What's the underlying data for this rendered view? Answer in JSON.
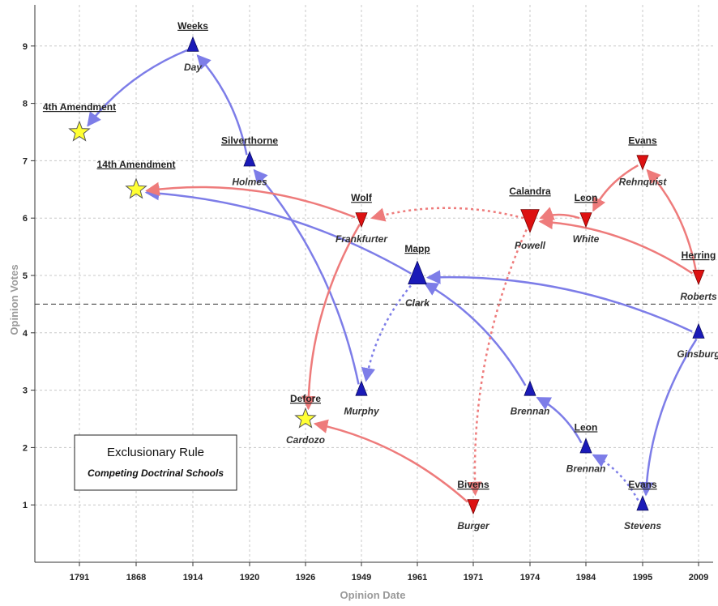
{
  "chart_data": {
    "type": "scatter",
    "xlabel": "Opinion Date",
    "ylabel": "Opinion Votes",
    "categories": [
      "1791",
      "1868",
      "1914",
      "1920",
      "1926",
      "1949",
      "1961",
      "1971",
      "1974",
      "1984",
      "1995",
      "2009"
    ],
    "ylim": [
      0,
      9.7
    ],
    "yticks": [
      1,
      2,
      3,
      4,
      5,
      6,
      7,
      8,
      9
    ],
    "threshold": 4.5,
    "grid": true,
    "box": {
      "title": "Exclusionary Rule",
      "subtitle": "Competing Doctrinal Schools"
    },
    "colors": {
      "blue": "#1a1ab8",
      "red": "#dd1111",
      "star": "#ffff33",
      "blue_link": "#7d7de8",
      "red_link": "#ee7b7b"
    },
    "nodes": [
      {
        "id": "amend4",
        "x": "1791",
        "y": 7.5,
        "shape": "star",
        "case": "4th Amendment",
        "justice": ""
      },
      {
        "id": "amend14",
        "x": "1868",
        "y": 6.5,
        "shape": "star",
        "case": "14th Amendment",
        "justice": ""
      },
      {
        "id": "weeks",
        "x": "1914",
        "y": 9,
        "shape": "triangle-up",
        "case": "Weeks",
        "justice": "Day"
      },
      {
        "id": "silverthorne",
        "x": "1920",
        "y": 7,
        "shape": "triangle-up",
        "case": "Silverthorne",
        "justice": "Holmes"
      },
      {
        "id": "defore",
        "x": "1926",
        "y": 2.5,
        "shape": "star",
        "case": "Defore",
        "justice": "Cardozo"
      },
      {
        "id": "wolf",
        "x": "1949",
        "y": 6,
        "shape": "triangle-down",
        "case": "Wolf",
        "justice": "Frankfurter"
      },
      {
        "id": "murphy",
        "x": "1949",
        "y": 3,
        "shape": "triangle-up",
        "case": "",
        "justice": "Murphy"
      },
      {
        "id": "mapp",
        "x": "1961",
        "y": 5,
        "shape": "triangle-up",
        "big": true,
        "case": "Mapp",
        "justice": "Clark"
      },
      {
        "id": "bivens",
        "x": "1971",
        "y": 1,
        "shape": "triangle-down",
        "case": "Bivens",
        "justice": "Burger"
      },
      {
        "id": "calandra",
        "x": "1974",
        "y": 6,
        "shape": "triangle-down",
        "big": true,
        "case": "Calandra",
        "justice": "Powell"
      },
      {
        "id": "brennan74",
        "x": "1974",
        "y": 3,
        "shape": "triangle-up",
        "case": "",
        "justice": "Brennan"
      },
      {
        "id": "leon_r",
        "x": "1984",
        "y": 6,
        "shape": "triangle-down",
        "case": "Leon",
        "justice": "White"
      },
      {
        "id": "leon_b",
        "x": "1984",
        "y": 2,
        "shape": "triangle-up",
        "case": "Leon",
        "justice": "Brennan"
      },
      {
        "id": "evans_r",
        "x": "1995",
        "y": 7,
        "shape": "triangle-down",
        "case": "Evans",
        "justice": "Rehnquist"
      },
      {
        "id": "evans_b",
        "x": "1995",
        "y": 1,
        "shape": "triangle-up",
        "case": "Evans",
        "justice": "Stevens"
      },
      {
        "id": "herring_r",
        "x": "2009",
        "y": 5,
        "shape": "triangle-down",
        "case": "Herring",
        "justice": "Roberts"
      },
      {
        "id": "herring_b",
        "x": "2009",
        "y": 4,
        "shape": "triangle-up",
        "case": "",
        "justice": "Ginsburg"
      }
    ],
    "links": [
      {
        "from": "weeks",
        "to": "amend4",
        "color": "blue",
        "dashed": false
      },
      {
        "from": "silverthorne",
        "to": "weeks",
        "color": "blue",
        "dashed": false
      },
      {
        "from": "murphy",
        "to": "silverthorne",
        "color": "blue",
        "dashed": false
      },
      {
        "from": "mapp",
        "to": "amend14",
        "color": "blue",
        "dashed": false
      },
      {
        "from": "mapp",
        "to": "murphy",
        "color": "blue",
        "dashed": true
      },
      {
        "from": "brennan74",
        "to": "mapp",
        "color": "blue",
        "dashed": false
      },
      {
        "from": "leon_b",
        "to": "brennan74",
        "color": "blue",
        "dashed": false
      },
      {
        "from": "evans_b",
        "to": "leon_b",
        "color": "blue",
        "dashed": true
      },
      {
        "from": "herring_b",
        "to": "evans_b",
        "color": "blue",
        "dashed": false
      },
      {
        "from": "herring_b",
        "to": "mapp",
        "color": "blue",
        "dashed": false
      },
      {
        "from": "wolf",
        "to": "amend14",
        "color": "red",
        "dashed": false
      },
      {
        "from": "wolf",
        "to": "defore",
        "color": "red",
        "dashed": false
      },
      {
        "from": "bivens",
        "to": "defore",
        "color": "red",
        "dashed": false
      },
      {
        "from": "calandra",
        "to": "wolf",
        "color": "red",
        "dashed": true
      },
      {
        "from": "calandra",
        "to": "bivens",
        "color": "red",
        "dashed": true
      },
      {
        "from": "leon_r",
        "to": "calandra",
        "color": "red",
        "dashed": false
      },
      {
        "from": "evans_r",
        "to": "leon_r",
        "color": "red",
        "dashed": false
      },
      {
        "from": "herring_r",
        "to": "evans_r",
        "color": "red",
        "dashed": false
      },
      {
        "from": "herring_r",
        "to": "calandra",
        "color": "red",
        "dashed": false
      }
    ]
  }
}
